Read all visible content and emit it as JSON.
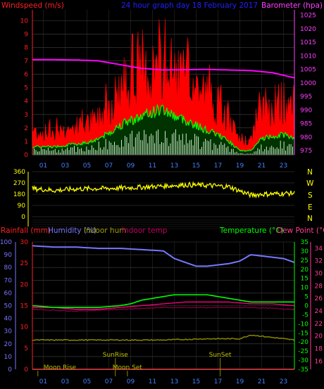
{
  "header": {
    "title": "24 hour graph day   18 February 2017",
    "left_label": "Windspeed (m/s)",
    "right_label": "Barometer (hpa)"
  },
  "compass": [
    "N",
    "W",
    "S",
    "E",
    "N"
  ],
  "bottom_header": {
    "rainfall": "Rainfall (mm)",
    "humidity": "Humidity (%)",
    "indoor_hum": "Indoor hum",
    "indoor_temp": "Indoor temp",
    "temperature": "Temperature (°C)",
    "dew_point": "Dew Point (°C)"
  },
  "events": {
    "moon_rise": "Moon Rise",
    "sun_rise": "SunRise",
    "moon_set": "Moon Set",
    "sun_set": "SunSet"
  },
  "colors": {
    "gust": "#ff0000",
    "wind_avg": "#00ff00",
    "wind_low": "#ffffff",
    "barometer": "#ff00ff",
    "direction": "#ffff00",
    "humidity": "#7777ff",
    "temperature": "#00ff00",
    "dew_point": "#ff0080",
    "indoor_hum": "#808000",
    "indoor_temp": "#800040",
    "rain": "#ff0000"
  },
  "chart_data": [
    {
      "type": "line",
      "title": "24 hour graph day   18 February 2017",
      "x_ticks": [
        "01",
        "03",
        "05",
        "07",
        "09",
        "11",
        "13",
        "15",
        "17",
        "19",
        "21",
        "23"
      ],
      "x_range": [
        0,
        24
      ],
      "y_left": {
        "label": "Windspeed (m/s)",
        "ticks": [
          0,
          1,
          2,
          3,
          4,
          5,
          6,
          7,
          8,
          9,
          10
        ],
        "range": [
          0,
          10.8
        ]
      },
      "y_right": {
        "label": "Barometer (hpa)",
        "ticks": [
          975,
          980,
          985,
          990,
          995,
          1000,
          1005,
          1010,
          1015,
          1020,
          1025
        ],
        "range": [
          973.5,
          1027
        ]
      },
      "series": [
        {
          "name": "Windspeed (m/s)",
          "kind": "gust",
          "hours": [
            0,
            1,
            2,
            3,
            4,
            5,
            6,
            7,
            8,
            9,
            10,
            11,
            12,
            13,
            14,
            15,
            16,
            17,
            18,
            19,
            20,
            21,
            22,
            23,
            24
          ],
          "values": [
            1.8,
            1.6,
            1.7,
            1.8,
            2.0,
            2.2,
            2.6,
            3.6,
            4.8,
            5.6,
            5.8,
            6.2,
            6.4,
            6.0,
            5.6,
            5.0,
            4.4,
            3.6,
            2.4,
            1.0,
            1.0,
            3.4,
            3.6,
            3.8,
            3.2
          ]
        },
        {
          "kind": "average",
          "hours": [
            0,
            1,
            2,
            3,
            4,
            5,
            6,
            7,
            8,
            9,
            10,
            11,
            12,
            13,
            14,
            15,
            16,
            17,
            18,
            19,
            20,
            21,
            22,
            23,
            24
          ],
          "values": [
            0.6,
            0.6,
            0.6,
            0.7,
            0.8,
            0.9,
            1.2,
            1.6,
            2.2,
            2.6,
            2.8,
            3.2,
            3.4,
            2.9,
            2.6,
            2.2,
            1.8,
            1.5,
            1.0,
            0.3,
            0.3,
            1.2,
            1.4,
            1.5,
            1.3
          ]
        },
        {
          "kind": "low",
          "hours": [
            0,
            1,
            2,
            3,
            4,
            5,
            6,
            7,
            8,
            9,
            10,
            11,
            12,
            13,
            14,
            15,
            16,
            17,
            18,
            19,
            20,
            21,
            22,
            23,
            24
          ],
          "values": [
            0.4,
            0.4,
            0.4,
            0.4,
            0.5,
            0.6,
            0.7,
            0.9,
            1.2,
            1.4,
            1.5,
            1.6,
            1.8,
            1.4,
            1.3,
            1.1,
            0.9,
            0.8,
            0.5,
            0.1,
            0.1,
            0.6,
            0.7,
            0.8,
            0.7
          ]
        },
        {
          "name": "Barometer (hpa)",
          "axis": "right",
          "hours": [
            0,
            2,
            4,
            6,
            8,
            10,
            12,
            14,
            16,
            18,
            20,
            22,
            24
          ],
          "values": [
            1008.6,
            1008.6,
            1008.5,
            1008.2,
            1006.8,
            1005.4,
            1004.8,
            1004.9,
            1005.0,
            1004.8,
            1004.6,
            1003.8,
            1001.9
          ]
        }
      ]
    },
    {
      "type": "line",
      "x_range": [
        0,
        24
      ],
      "y": {
        "ticks": [
          0,
          90,
          180,
          270,
          360
        ],
        "range": [
          0,
          360
        ]
      },
      "series": [
        {
          "kind": "wind_direction",
          "hours": [
            0,
            2,
            4,
            6,
            8,
            10,
            12,
            14,
            16,
            18,
            20,
            21,
            22,
            24
          ],
          "values": [
            225,
            210,
            222,
            225,
            228,
            236,
            245,
            255,
            250,
            240,
            172,
            180,
            182,
            188
          ]
        }
      ]
    },
    {
      "type": "line",
      "x_ticks": [
        "01",
        "03",
        "05",
        "07",
        "09",
        "11",
        "13",
        "15",
        "17",
        "19",
        "21",
        "23"
      ],
      "x_range": [
        0,
        24
      ],
      "y_left_outer": {
        "label": "Rainfall (mm)",
        "ticks": [
          0,
          5,
          10,
          15,
          20,
          25,
          30
        ],
        "range": [
          0,
          30
        ]
      },
      "y_left_inner": {
        "label": "Humidity (%)",
        "ticks": [
          0,
          10,
          20,
          30,
          40,
          50,
          60,
          70,
          80,
          90,
          100
        ],
        "range": [
          0,
          100
        ]
      },
      "y_right_inner": {
        "label": "Temperature (°C)",
        "ticks": [
          -35,
          -30,
          -25,
          -20,
          -15,
          -10,
          -5,
          0,
          5,
          10,
          15,
          20,
          25,
          30,
          35
        ],
        "range": [
          -35,
          35
        ]
      },
      "y_right_outer": {
        "label": "Dew Point (°C)",
        "ticks": [
          16,
          18,
          20,
          22,
          24,
          26,
          28,
          30,
          32,
          34
        ],
        "range": [
          14.7,
          35
        ]
      },
      "series": [
        {
          "name": "Humidity (%)",
          "axis": "left_inner",
          "hours": [
            0,
            2,
            4,
            6,
            8,
            10,
            12,
            13,
            14,
            15,
            16,
            17,
            18,
            19,
            20,
            21,
            22,
            23,
            24
          ],
          "values": [
            97,
            96,
            96,
            95,
            95,
            94,
            93,
            87,
            84,
            81,
            81,
            82,
            83,
            85,
            90,
            89,
            88,
            87,
            84
          ]
        },
        {
          "name": "Temperature (°C)",
          "axis": "right_inner",
          "hours": [
            0,
            2,
            4,
            6,
            8,
            9,
            10,
            11,
            12,
            13,
            14,
            15,
            16,
            17,
            18,
            19,
            20,
            22,
            24
          ],
          "values": [
            0,
            -1,
            -1,
            -1,
            0,
            1,
            3,
            4,
            5,
            6,
            6,
            6,
            6,
            5,
            4,
            3,
            2,
            2,
            2
          ]
        },
        {
          "name": "Dew Point (°C)",
          "axis": "right_inner",
          "hours": [
            0,
            2,
            4,
            6,
            8,
            10,
            12,
            14,
            16,
            18,
            20,
            22,
            24
          ],
          "values": [
            -1,
            -1,
            -2,
            -2,
            -1,
            0,
            1,
            2,
            2,
            2,
            1,
            1,
            0
          ]
        },
        {
          "name": "Indoor hum",
          "axis": "left_inner",
          "hours": [
            0,
            4,
            8,
            12,
            16,
            19,
            20,
            21,
            22,
            24
          ],
          "values": [
            23,
            23,
            23,
            23,
            24,
            24,
            27,
            26,
            25,
            23
          ]
        },
        {
          "name": "Indoor temp",
          "axis": "right_inner",
          "hours": [
            0,
            4,
            8,
            12,
            16,
            20,
            24
          ],
          "values": [
            -2,
            -3,
            -2,
            -1,
            -1,
            -1,
            -2
          ]
        },
        {
          "name": "Rainfall (mm)",
          "axis": "left_outer",
          "hours": [
            0,
            24
          ],
          "values": [
            0,
            0
          ]
        }
      ],
      "event_hours": {
        "moon_rise": 0.5,
        "sun_rise": 7.6,
        "moon_set": 8.7,
        "sun_set": 17.2
      }
    }
  ]
}
